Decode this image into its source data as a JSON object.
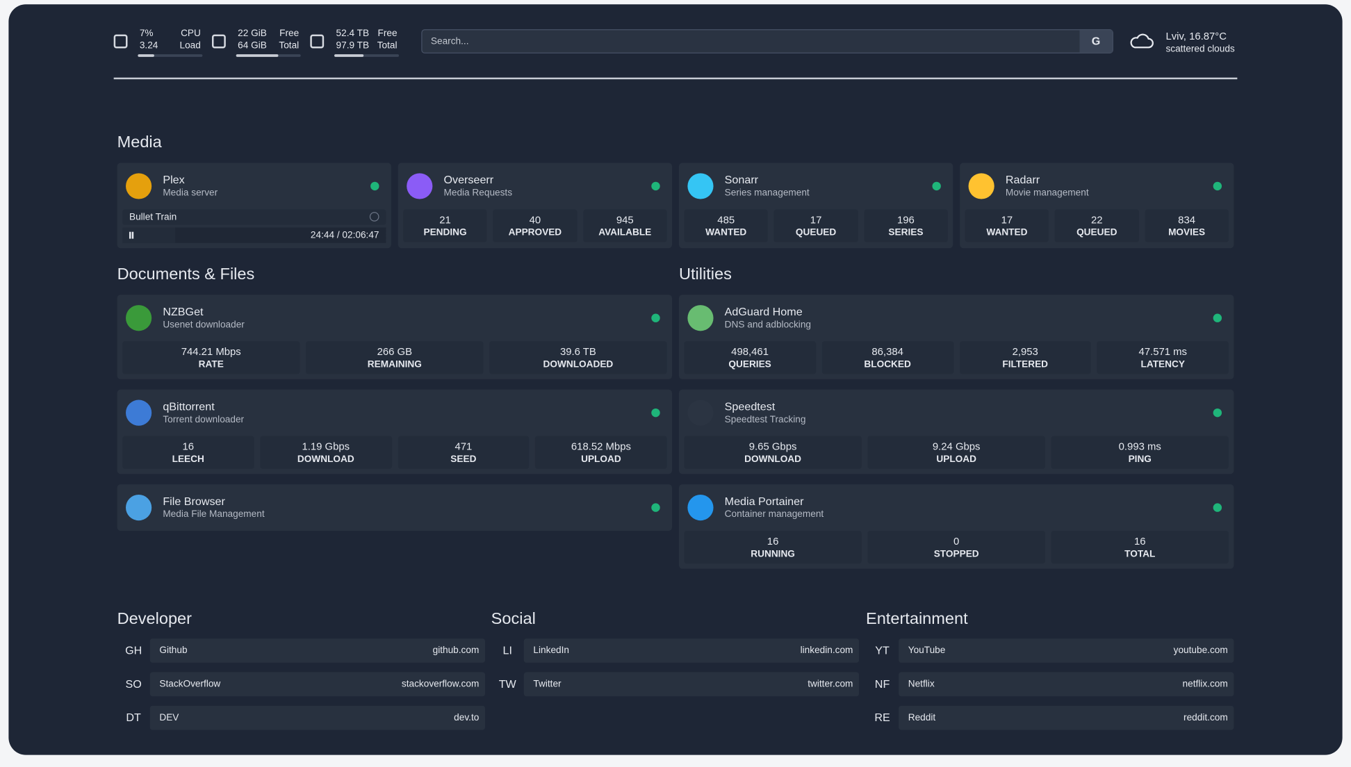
{
  "header": {
    "resources": [
      {
        "value": "7%",
        "value2": "3.24",
        "label": "CPU",
        "label2": "Load"
      },
      {
        "value": "22 GiB",
        "value2": "64 GiB",
        "label": "Free",
        "label2": "Total"
      },
      {
        "value": "52.4 TB",
        "value2": "97.9 TB",
        "label": "Free",
        "label2": "Total"
      }
    ],
    "search_placeholder": "Search...",
    "search_button": "G",
    "weather": {
      "location": "Lviv, 16.87°C",
      "condition": "scattered clouds"
    }
  },
  "sections": [
    {
      "title": "Media",
      "services": [
        {
          "name": "Plex",
          "description": "Media server",
          "now_playing": {
            "title": "Bullet Train",
            "time": "24:44 / 02:06:47"
          }
        },
        {
          "name": "Overseerr",
          "description": "Media Requests",
          "fields": [
            {
              "value": "21",
              "label": "PENDING"
            },
            {
              "value": "40",
              "label": "APPROVED"
            },
            {
              "value": "945",
              "label": "AVAILABLE"
            }
          ]
        },
        {
          "name": "Sonarr",
          "description": "Series management",
          "fields": [
            {
              "value": "485",
              "label": "WANTED"
            },
            {
              "value": "17",
              "label": "QUEUED"
            },
            {
              "value": "196",
              "label": "SERIES"
            }
          ]
        },
        {
          "name": "Radarr",
          "description": "Movie management",
          "fields": [
            {
              "value": "17",
              "label": "WANTED"
            },
            {
              "value": "22",
              "label": "QUEUED"
            },
            {
              "value": "834",
              "label": "MOVIES"
            }
          ]
        }
      ]
    },
    {
      "title": "Documents & Files",
      "services": [
        {
          "name": "NZBGet",
          "description": "Usenet downloader",
          "fields": [
            {
              "value": "744.21 Mbps",
              "label": "RATE"
            },
            {
              "value": "266 GB",
              "label": "REMAINING"
            },
            {
              "value": "39.6 TB",
              "label": "DOWNLOADED"
            }
          ]
        },
        {
          "name": "qBittorrent",
          "description": "Torrent downloader",
          "fields": [
            {
              "value": "16",
              "label": "LEECH"
            },
            {
              "value": "1.19 Gbps",
              "label": "DOWNLOAD"
            },
            {
              "value": "471",
              "label": "SEED"
            },
            {
              "value": "618.52 Mbps",
              "label": "UPLOAD"
            }
          ]
        },
        {
          "name": "File Browser",
          "description": "Media File Management"
        }
      ]
    },
    {
      "title": "Utilities",
      "services": [
        {
          "name": "AdGuard Home",
          "description": "DNS and adblocking",
          "fields": [
            {
              "value": "498,461",
              "label": "QUERIES"
            },
            {
              "value": "86,384",
              "label": "BLOCKED"
            },
            {
              "value": "2,953",
              "label": "FILTERED"
            },
            {
              "value": "47.571 ms",
              "label": "LATENCY"
            }
          ]
        },
        {
          "name": "Speedtest",
          "description": "Speedtest Tracking",
          "fields": [
            {
              "value": "9.65 Gbps",
              "label": "DOWNLOAD"
            },
            {
              "value": "9.24 Gbps",
              "label": "UPLOAD"
            },
            {
              "value": "0.993 ms",
              "label": "PING"
            }
          ]
        },
        {
          "name": "Media Portainer",
          "description": "Container management",
          "fields": [
            {
              "value": "16",
              "label": "RUNNING"
            },
            {
              "value": "0",
              "label": "STOPPED"
            },
            {
              "value": "16",
              "label": "TOTAL"
            }
          ]
        }
      ]
    }
  ],
  "bookmarks": [
    {
      "title": "Developer",
      "items": [
        {
          "abbr": "GH",
          "name": "Github",
          "url": "github.com"
        },
        {
          "abbr": "SO",
          "name": "StackOverflow",
          "url": "stackoverflow.com"
        },
        {
          "abbr": "DT",
          "name": "DEV",
          "url": "dev.to"
        }
      ]
    },
    {
      "title": "Social",
      "items": [
        {
          "abbr": "LI",
          "name": "LinkedIn",
          "url": "linkedin.com"
        },
        {
          "abbr": "TW",
          "name": "Twitter",
          "url": "twitter.com"
        }
      ]
    },
    {
      "title": "Entertainment",
      "items": [
        {
          "abbr": "YT",
          "name": "YouTube",
          "url": "youtube.com"
        },
        {
          "abbr": "NF",
          "name": "Netflix",
          "url": "netflix.com"
        },
        {
          "abbr": "RE",
          "name": "Reddit",
          "url": "reddit.com"
        }
      ]
    }
  ]
}
